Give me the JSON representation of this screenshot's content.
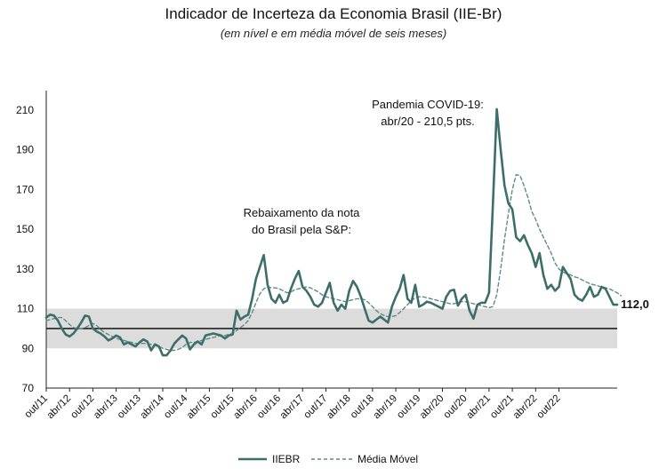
{
  "chart_data": {
    "type": "line",
    "title": "Indicador de Incerteza da Economia Brasil (IIE-Br)",
    "subtitle": "(em nível e em média móvel de seis meses)",
    "ylim": [
      70,
      215
    ],
    "yticks": [
      70,
      90,
      110,
      130,
      150,
      170,
      190,
      210
    ],
    "band": [
      90,
      110
    ],
    "reference_line": 100,
    "x_tick_labels": [
      "out/11",
      "abr/12",
      "out/12",
      "abr/13",
      "out/13",
      "abr/14",
      "out/14",
      "abr/15",
      "out/15",
      "abr/16",
      "out/16",
      "abr/17",
      "out/17",
      "abr/18",
      "out/18",
      "abr/19",
      "out/19",
      "abr/20",
      "out/20",
      "abr/21",
      "out/21",
      "abr/22",
      "out/22"
    ],
    "colors": {
      "iiebr": "#3d6e6a",
      "media": "#5f8c86",
      "band": "#dcdcdc",
      "ref": "#000000"
    },
    "series": [
      {
        "name": "IIEBR",
        "style": "solid",
        "values": [
          105.5,
          107,
          106.5,
          104,
          100,
          97,
          96,
          97.5,
          100,
          103,
          106.5,
          106,
          100,
          98.5,
          97.5,
          96,
          94,
          95,
          96.5,
          95.5,
          92,
          93,
          92,
          91,
          93,
          94.5,
          93.5,
          89,
          92,
          91,
          86.5,
          86.5,
          89,
          92.5,
          94.5,
          96.5,
          95,
          89.5,
          92,
          93.5,
          92,
          96.5,
          97,
          97.5,
          97,
          96.5,
          95,
          96.5,
          97,
          109,
          104.5,
          106,
          107,
          115,
          125,
          131,
          137,
          122,
          115,
          113,
          117,
          113,
          114,
          120,
          125,
          129,
          121,
          119,
          116,
          112,
          111,
          113,
          118,
          123,
          113,
          109,
          112,
          110,
          119,
          124,
          121,
          116,
          110,
          104,
          103,
          104.5,
          106,
          104.5,
          103,
          111,
          116,
          120,
          127,
          115,
          113,
          122,
          111,
          112,
          113.5,
          113,
          112,
          111,
          110,
          116,
          119,
          119.5,
          111.5,
          115,
          117,
          109,
          105,
          112,
          113,
          113,
          118,
          162,
          210.5,
          190,
          172,
          163,
          160,
          146,
          144,
          147,
          142,
          138,
          131,
          138,
          127,
          120,
          122,
          119,
          121,
          131,
          128,
          125,
          117,
          115,
          114,
          117,
          121,
          116,
          117,
          121,
          120,
          116,
          112,
          112
        ],
        "end_label": "112,0"
      },
      {
        "name": "Média Móvel",
        "style": "dashed",
        "values": [
          104,
          104.5,
          105,
          105.5,
          105.5,
          104,
          102,
          100.5,
          100,
          100,
          100.5,
          101.5,
          102.5,
          101.5,
          99.5,
          98,
          97,
          96,
          95,
          94.5,
          94,
          93.5,
          93,
          92.5,
          92.5,
          92.5,
          92.5,
          92,
          91.5,
          91,
          90,
          89.5,
          89,
          89,
          89.5,
          90.5,
          92,
          93,
          93,
          93.5,
          94,
          94.5,
          95,
          95.5,
          96,
          96.5,
          96.5,
          97,
          97.5,
          99,
          100.5,
          102,
          104,
          108,
          113,
          117.5,
          120,
          121,
          120.5,
          120.5,
          120,
          119,
          118,
          118.5,
          119.5,
          120,
          120.5,
          121,
          120.5,
          119.5,
          118.5,
          117,
          116,
          115.5,
          115,
          114.5,
          114,
          113.5,
          114,
          114.5,
          115,
          115,
          114.5,
          113,
          111,
          109,
          107.5,
          106.5,
          106,
          106,
          106.5,
          108,
          110,
          112,
          114,
          115.5,
          116,
          116,
          115.5,
          115,
          114.5,
          114,
          113.5,
          113,
          112.5,
          112.5,
          113,
          113.5,
          113.5,
          113,
          112.5,
          112,
          111.5,
          111,
          110.5,
          111,
          117,
          130,
          145,
          158,
          170,
          177.5,
          177,
          172,
          166,
          159,
          155,
          150,
          146,
          142,
          138,
          133,
          130,
          128.5,
          127.5,
          127,
          126,
          125.5,
          124.5,
          123.5,
          122.5,
          122,
          121.5,
          121,
          120.5,
          120,
          119,
          118,
          116.5
        ]
      }
    ],
    "annotations": [
      {
        "id": "covid",
        "lines": [
          "Pandemia COVID-19:",
          "abr/20 - 210,5 pts."
        ]
      },
      {
        "id": "sp",
        "lines": [
          "Rebaixamento da nota",
          "do Brasil pela S&P:"
        ]
      }
    ],
    "legend": [
      {
        "label": "IIEBR",
        "style": "solid"
      },
      {
        "label": "Média Móvel",
        "style": "dashed"
      }
    ],
    "legend_position": "bottom-center"
  }
}
